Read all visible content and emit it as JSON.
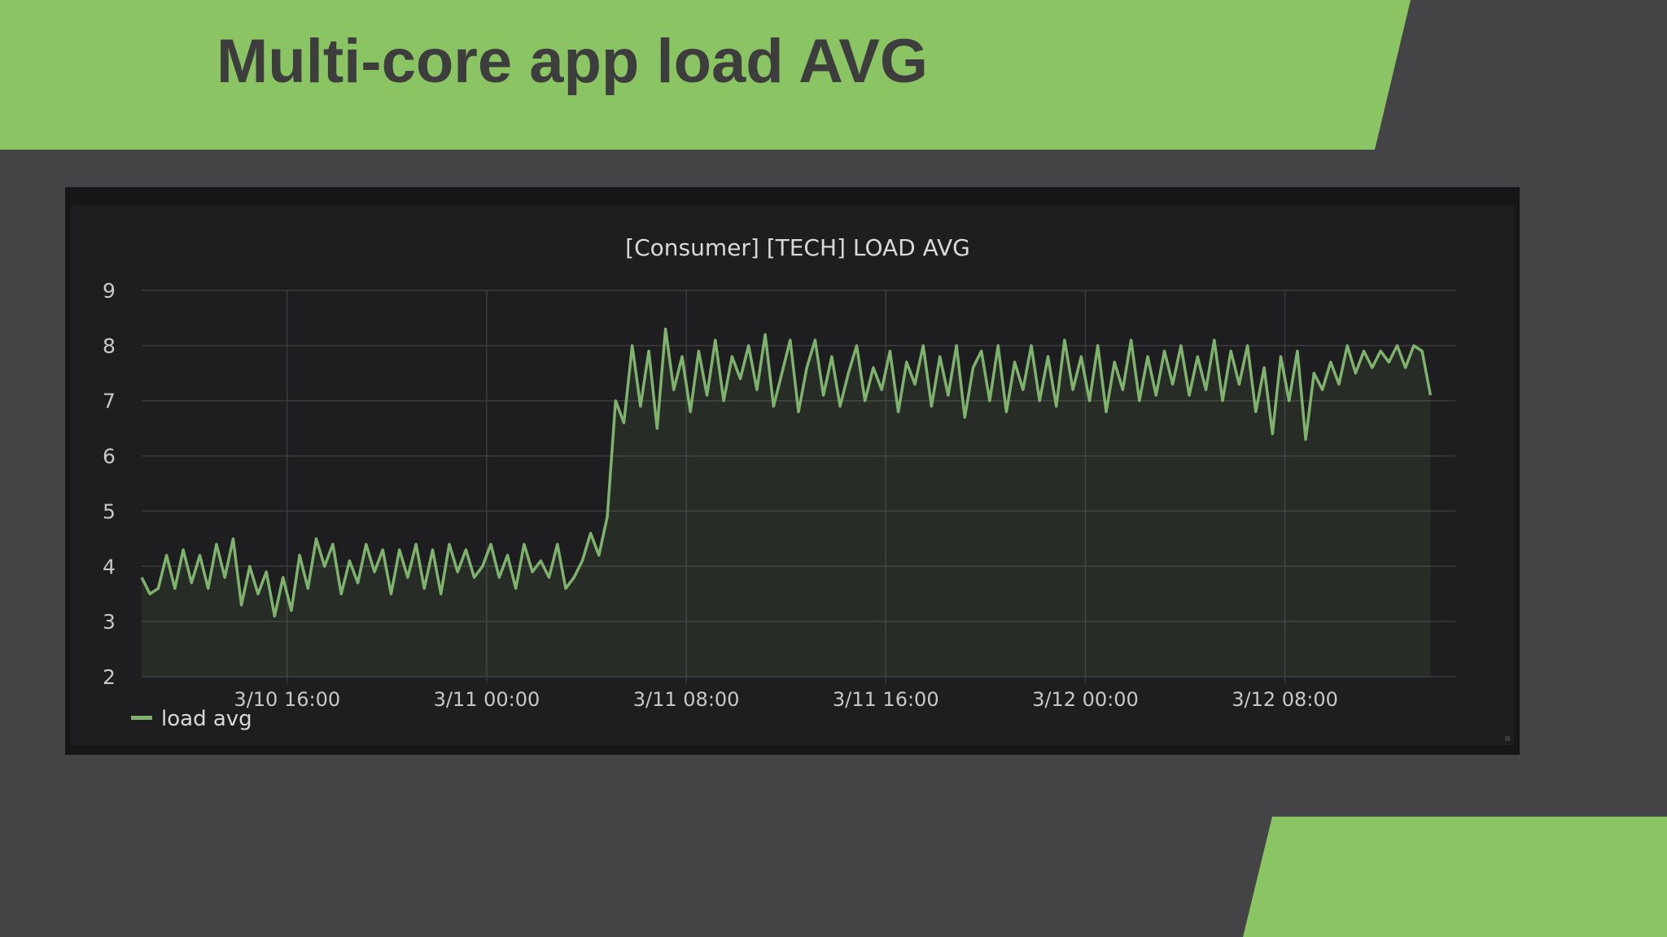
{
  "slide": {
    "title": "Multi-core app load AVG"
  },
  "colors": {
    "accent_green": "#8bc462",
    "slide_background": "#444346",
    "title_text": "#3d3d3d",
    "panel_background": "#1e1d20",
    "series_line": "#7eb26d"
  },
  "chart_data": {
    "type": "line",
    "title": "[Consumer] [TECH] LOAD AVG",
    "xlabel": "",
    "ylabel": "",
    "ylim": [
      2,
      9
    ],
    "yticks": [
      2,
      3,
      4,
      5,
      6,
      7,
      8,
      9
    ],
    "xlim": [
      "3/10 10:10",
      "3/12 14:50"
    ],
    "xticks": [
      {
        "t": "3/10 16:00",
        "label": "3/10 16:00"
      },
      {
        "t": "3/11 00:00",
        "label": "3/11 00:00"
      },
      {
        "t": "3/11 08:00",
        "label": "3/11 08:00"
      },
      {
        "t": "3/11 16:00",
        "label": "3/11 16:00"
      },
      {
        "t": "3/12 00:00",
        "label": "3/12 00:00"
      },
      {
        "t": "3/12 08:00",
        "label": "3/12 08:00"
      }
    ],
    "grid": true,
    "legend": {
      "placement": "bottom-left"
    },
    "series": [
      {
        "name": "load avg",
        "color": "#7eb26d",
        "fill": true,
        "points": [
          [
            "3/10 10:10",
            3.8
          ],
          [
            "3/10 10:30",
            3.5
          ],
          [
            "3/10 10:50",
            3.6
          ],
          [
            "3/10 11:10",
            4.2
          ],
          [
            "3/10 11:30",
            3.6
          ],
          [
            "3/10 11:50",
            4.3
          ],
          [
            "3/10 12:10",
            3.7
          ],
          [
            "3/10 12:30",
            4.2
          ],
          [
            "3/10 12:50",
            3.6
          ],
          [
            "3/10 13:10",
            4.4
          ],
          [
            "3/10 13:30",
            3.8
          ],
          [
            "3/10 13:50",
            4.5
          ],
          [
            "3/10 14:10",
            3.3
          ],
          [
            "3/10 14:30",
            4.0
          ],
          [
            "3/10 14:50",
            3.5
          ],
          [
            "3/10 15:10",
            3.9
          ],
          [
            "3/10 15:30",
            3.1
          ],
          [
            "3/10 15:50",
            3.8
          ],
          [
            "3/10 16:10",
            3.2
          ],
          [
            "3/10 16:30",
            4.2
          ],
          [
            "3/10 16:50",
            3.6
          ],
          [
            "3/10 17:10",
            4.5
          ],
          [
            "3/10 17:30",
            4.0
          ],
          [
            "3/10 17:50",
            4.4
          ],
          [
            "3/10 18:10",
            3.5
          ],
          [
            "3/10 18:30",
            4.1
          ],
          [
            "3/10 18:50",
            3.7
          ],
          [
            "3/10 19:10",
            4.4
          ],
          [
            "3/10 19:30",
            3.9
          ],
          [
            "3/10 19:50",
            4.3
          ],
          [
            "3/10 20:10",
            3.5
          ],
          [
            "3/10 20:30",
            4.3
          ],
          [
            "3/10 20:50",
            3.8
          ],
          [
            "3/10 21:10",
            4.4
          ],
          [
            "3/10 21:30",
            3.6
          ],
          [
            "3/10 21:50",
            4.3
          ],
          [
            "3/10 22:10",
            3.5
          ],
          [
            "3/10 22:30",
            4.4
          ],
          [
            "3/10 22:50",
            3.9
          ],
          [
            "3/10 23:10",
            4.3
          ],
          [
            "3/10 23:30",
            3.8
          ],
          [
            "3/10 23:50",
            4.0
          ],
          [
            "3/11 00:10",
            4.4
          ],
          [
            "3/11 00:30",
            3.8
          ],
          [
            "3/11 00:50",
            4.2
          ],
          [
            "3/11 01:10",
            3.6
          ],
          [
            "3/11 01:30",
            4.4
          ],
          [
            "3/11 01:50",
            3.9
          ],
          [
            "3/11 02:10",
            4.1
          ],
          [
            "3/11 02:30",
            3.8
          ],
          [
            "3/11 02:50",
            4.4
          ],
          [
            "3/11 03:10",
            3.6
          ],
          [
            "3/11 03:30",
            3.8
          ],
          [
            "3/11 03:50",
            4.1
          ],
          [
            "3/11 04:10",
            4.6
          ],
          [
            "3/11 04:30",
            4.2
          ],
          [
            "3/11 04:50",
            4.9
          ],
          [
            "3/11 05:10",
            7.0
          ],
          [
            "3/11 05:30",
            6.6
          ],
          [
            "3/11 05:50",
            8.0
          ],
          [
            "3/11 06:10",
            6.9
          ],
          [
            "3/11 06:30",
            7.9
          ],
          [
            "3/11 06:50",
            6.5
          ],
          [
            "3/11 07:10",
            8.3
          ],
          [
            "3/11 07:30",
            7.2
          ],
          [
            "3/11 07:50",
            7.8
          ],
          [
            "3/11 08:10",
            6.8
          ],
          [
            "3/11 08:30",
            7.9
          ],
          [
            "3/11 08:50",
            7.1
          ],
          [
            "3/11 09:10",
            8.1
          ],
          [
            "3/11 09:30",
            7.0
          ],
          [
            "3/11 09:50",
            7.8
          ],
          [
            "3/11 10:10",
            7.4
          ],
          [
            "3/11 10:30",
            8.0
          ],
          [
            "3/11 10:50",
            7.2
          ],
          [
            "3/11 11:10",
            8.2
          ],
          [
            "3/11 11:30",
            6.9
          ],
          [
            "3/11 11:50",
            7.5
          ],
          [
            "3/11 12:10",
            8.1
          ],
          [
            "3/11 12:30",
            6.8
          ],
          [
            "3/11 12:50",
            7.6
          ],
          [
            "3/11 13:10",
            8.1
          ],
          [
            "3/11 13:30",
            7.1
          ],
          [
            "3/11 13:50",
            7.8
          ],
          [
            "3/11 14:10",
            6.9
          ],
          [
            "3/11 14:30",
            7.5
          ],
          [
            "3/11 14:50",
            8.0
          ],
          [
            "3/11 15:10",
            7.0
          ],
          [
            "3/11 15:30",
            7.6
          ],
          [
            "3/11 15:50",
            7.2
          ],
          [
            "3/11 16:10",
            7.9
          ],
          [
            "3/11 16:30",
            6.8
          ],
          [
            "3/11 16:50",
            7.7
          ],
          [
            "3/11 17:10",
            7.3
          ],
          [
            "3/11 17:30",
            8.0
          ],
          [
            "3/11 17:50",
            6.9
          ],
          [
            "3/11 18:10",
            7.8
          ],
          [
            "3/11 18:30",
            7.1
          ],
          [
            "3/11 18:50",
            8.0
          ],
          [
            "3/11 19:10",
            6.7
          ],
          [
            "3/11 19:30",
            7.6
          ],
          [
            "3/11 19:50",
            7.9
          ],
          [
            "3/11 20:10",
            7.0
          ],
          [
            "3/11 20:30",
            8.0
          ],
          [
            "3/11 20:50",
            6.8
          ],
          [
            "3/11 21:10",
            7.7
          ],
          [
            "3/11 21:30",
            7.2
          ],
          [
            "3/11 21:50",
            8.0
          ],
          [
            "3/11 22:10",
            7.0
          ],
          [
            "3/11 22:30",
            7.8
          ],
          [
            "3/11 22:50",
            6.9
          ],
          [
            "3/11 23:10",
            8.1
          ],
          [
            "3/11 23:30",
            7.2
          ],
          [
            "3/11 23:50",
            7.8
          ],
          [
            "3/12 00:10",
            7.0
          ],
          [
            "3/12 00:30",
            8.0
          ],
          [
            "3/12 00:50",
            6.8
          ],
          [
            "3/12 01:10",
            7.7
          ],
          [
            "3/12 01:30",
            7.2
          ],
          [
            "3/12 01:50",
            8.1
          ],
          [
            "3/12 02:10",
            7.0
          ],
          [
            "3/12 02:30",
            7.8
          ],
          [
            "3/12 02:50",
            7.1
          ],
          [
            "3/12 03:10",
            7.9
          ],
          [
            "3/12 03:30",
            7.3
          ],
          [
            "3/12 03:50",
            8.0
          ],
          [
            "3/12 04:10",
            7.1
          ],
          [
            "3/12 04:30",
            7.8
          ],
          [
            "3/12 04:50",
            7.2
          ],
          [
            "3/12 05:10",
            8.1
          ],
          [
            "3/12 05:30",
            7.0
          ],
          [
            "3/12 05:50",
            7.9
          ],
          [
            "3/12 06:10",
            7.3
          ],
          [
            "3/12 06:30",
            8.0
          ],
          [
            "3/12 06:50",
            6.8
          ],
          [
            "3/12 07:10",
            7.6
          ],
          [
            "3/12 07:30",
            6.4
          ],
          [
            "3/12 07:50",
            7.8
          ],
          [
            "3/12 08:10",
            7.0
          ],
          [
            "3/12 08:30",
            7.9
          ],
          [
            "3/12 08:50",
            6.3
          ],
          [
            "3/12 09:10",
            7.5
          ],
          [
            "3/12 09:30",
            7.2
          ],
          [
            "3/12 09:50",
            7.7
          ],
          [
            "3/12 10:10",
            7.3
          ],
          [
            "3/12 10:30",
            8.0
          ],
          [
            "3/12 10:50",
            7.5
          ],
          [
            "3/12 11:10",
            7.9
          ],
          [
            "3/12 11:30",
            7.6
          ],
          [
            "3/12 11:50",
            7.9
          ],
          [
            "3/12 12:10",
            7.7
          ],
          [
            "3/12 12:30",
            8.0
          ],
          [
            "3/12 12:50",
            7.6
          ],
          [
            "3/12 13:10",
            8.0
          ],
          [
            "3/12 13:30",
            7.9
          ],
          [
            "3/12 13:50",
            7.1
          ]
        ]
      }
    ]
  }
}
